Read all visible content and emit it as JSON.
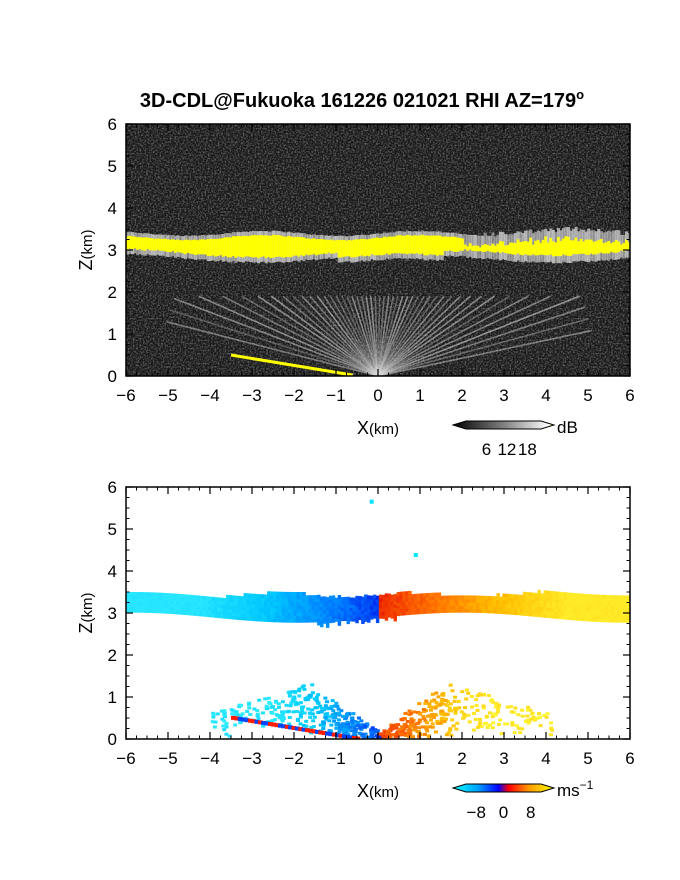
{
  "title": "3D-CDL@Fukuoka 161226 021021 RHI AZ=179",
  "title_degree": "o",
  "colors": {
    "background_dark": "#181818",
    "cloud_yellow": "#ffff00",
    "cloud_white": "#f4f4f4",
    "toward_cyan": "#00e5ff",
    "toward_blue": "#0044ff",
    "away_red": "#ff1a00",
    "away_orange": "#ff9a00",
    "away_yellow": "#ffe800"
  },
  "chart_data": [
    {
      "type": "heatmap",
      "name": "reflectivity",
      "xlabel_main": "X",
      "xlabel_unit": "(km)",
      "ylabel_main": "Z",
      "ylabel_unit": "(km)",
      "xlim": [
        -6,
        6
      ],
      "ylim": [
        0,
        6
      ],
      "x_ticks": [
        "−6",
        "−5",
        "−4",
        "−3",
        "−2",
        "−1",
        "0",
        "1",
        "2",
        "3",
        "4",
        "5",
        "6"
      ],
      "y_ticks": [
        "0",
        "1",
        "2",
        "3",
        "4",
        "5",
        "6"
      ],
      "colorbar": {
        "unit": "dB",
        "tick_labels": [
          "6",
          "12",
          "18"
        ],
        "tick_values": [
          6,
          12,
          18
        ],
        "range": [
          0,
          22
        ]
      },
      "cloud_layer": {
        "x_range": [
          -6,
          6
        ],
        "z_base_km": 2.95,
        "z_top_km": 3.3,
        "description_color": "yellow"
      },
      "surface_echo": {
        "x_range": [
          -3.5,
          -0.6
        ],
        "z_start_km": 0.5,
        "z_end_km": 0.0
      },
      "clear_air_fan": {
        "x_range": [
          -4.5,
          4.5
        ],
        "z_max_km": 1.9
      }
    },
    {
      "type": "heatmap",
      "name": "doppler_velocity",
      "xlabel_main": "X",
      "xlabel_unit": "(km)",
      "ylabel_main": "Z",
      "ylabel_unit": "(km)",
      "xlim": [
        -6,
        6
      ],
      "ylim": [
        0,
        6
      ],
      "x_ticks": [
        "−6",
        "−5",
        "−4",
        "−3",
        "−2",
        "−1",
        "0",
        "1",
        "2",
        "3",
        "4",
        "5",
        "6"
      ],
      "y_ticks": [
        "0",
        "1",
        "2",
        "3",
        "4",
        "5",
        "6"
      ],
      "colorbar": {
        "unit": "ms",
        "unit_exp": "−1",
        "tick_labels": [
          "−8",
          "0",
          "8"
        ],
        "tick_values": [
          -8,
          0,
          8
        ],
        "range": [
          -11,
          11
        ]
      },
      "cloud_layer": {
        "x_range": [
          -6,
          6
        ],
        "z_base_km": 2.9,
        "z_top_km": 3.4,
        "velocity_left_ms": -8,
        "velocity_right_ms": 8
      },
      "outliers": [
        {
          "x": -0.15,
          "z": 5.65
        },
        {
          "x": 0.9,
          "z": 4.38
        }
      ],
      "clear_air_fan": {
        "x_range": [
          -4.0,
          4.1
        ],
        "z_max_km": 1.85
      }
    }
  ]
}
